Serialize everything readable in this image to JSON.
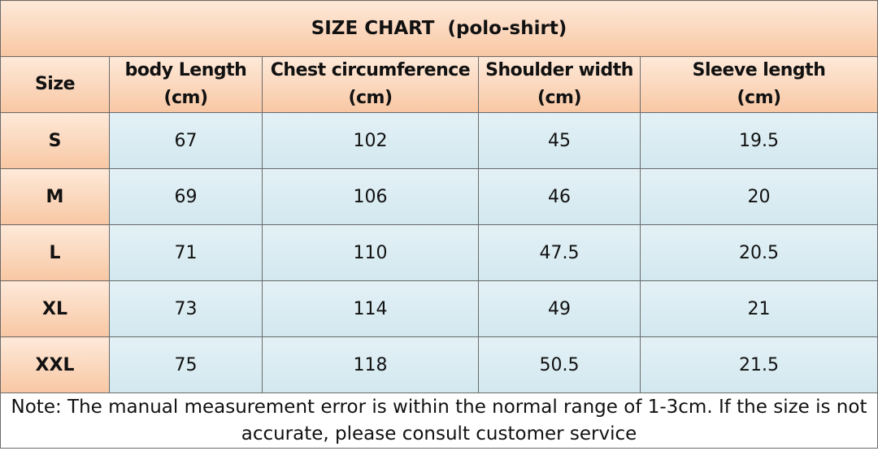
{
  "title": "SIZE CHART  (polo-shirt)",
  "table": {
    "headers": [
      [
        "Size"
      ],
      [
        "body Length",
        "(cm)"
      ],
      [
        "Chest circumference",
        "(cm)"
      ],
      [
        "Shoulder width",
        "(cm)"
      ],
      [
        "Sleeve length",
        "(cm)"
      ]
    ],
    "rows": [
      [
        "S",
        67,
        102,
        45,
        19.5
      ],
      [
        "M",
        69,
        106,
        46,
        20
      ],
      [
        "L",
        71,
        110,
        47.5,
        20.5
      ],
      [
        "XL",
        73,
        114,
        49,
        21
      ],
      [
        "XXL",
        75,
        118,
        50.5,
        21.5
      ]
    ]
  },
  "note": "Note: The manual measurement error is within the normal range of 1-3cm. If the size is not accurate, please consult customer service"
}
